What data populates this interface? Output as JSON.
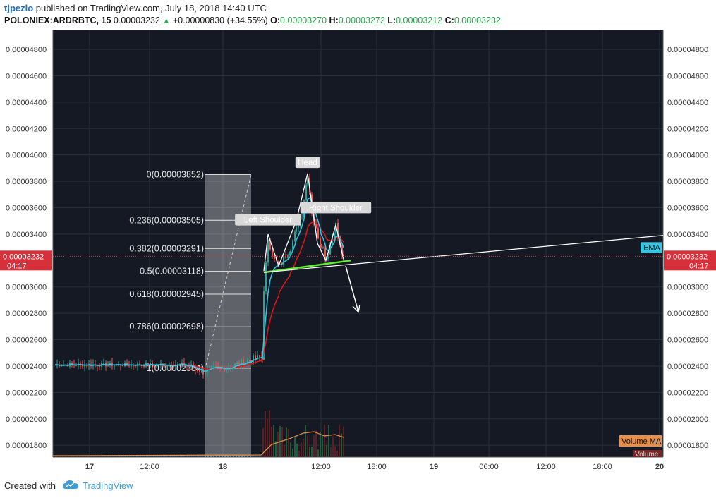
{
  "header": {
    "author": "tjpezlo",
    "published_text": "published on TradingView.com, July 18, 2018 14:40 UTC",
    "symbol_line": "POLONIEX:ARDRBTC, 15",
    "last_price": "0.00003232",
    "change_arrow": "▲",
    "change_text": "+0.00000830 (+34.55%)",
    "open_label": "O:",
    "open": "0.00003270",
    "high_label": "H:",
    "high": "0.00003272",
    "low_label": "L:",
    "low": "0.00003212",
    "close_label": "C:",
    "close": "0.00003232"
  },
  "footer": {
    "created_with": "Created with",
    "brand": "TradingView"
  },
  "chart_data": {
    "type": "candlestick",
    "y_ticks": [
      "0.00004800",
      "0.00004600",
      "0.00004400",
      "0.00004200",
      "0.00004000",
      "0.00003800",
      "0.00003600",
      "0.00003400",
      "0.00003000",
      "0.00002800",
      "0.00002600",
      "0.00002400",
      "0.00002200",
      "0.00002000",
      "0.00001800"
    ],
    "x_ticks": [
      "17",
      "12:00",
      "18",
      "12:00",
      "18:00",
      "19",
      "06:00",
      "12:00",
      "18:00",
      "20"
    ],
    "ylim": [
      1.71e-05,
      4.95e-05
    ],
    "price_label": "0.00003232",
    "countdown": "04:17",
    "fibonacci": [
      {
        "label": "0(0.00003852)",
        "value": 3.852e-05
      },
      {
        "label": "0.236(0.00003505)",
        "value": 3.505e-05
      },
      {
        "label": "0.382(0.00003291)",
        "value": 3.291e-05
      },
      {
        "label": "0.5(0.00003118)",
        "value": 3.118e-05
      },
      {
        "label": "0.618(0.00002945)",
        "value": 2.945e-05
      },
      {
        "label": "0.786(0.00002698)",
        "value": 2.698e-05
      },
      {
        "label": "1(0.00002384)",
        "value": 2.384e-05
      }
    ],
    "annotations": [
      "Head",
      "Left Shoulder",
      "Right Shoulder"
    ],
    "legend": [
      "EMA",
      "Volume MA",
      "Volume"
    ],
    "colors": {
      "background": "#151924",
      "grid": "#2a2e39",
      "up": "#26a69a",
      "down": "#ef5350",
      "ema_fast": "#33c9e6",
      "ema_slow": "#e31414",
      "neckline": "#5cf02b",
      "volume_ma": "#e8904a",
      "price_line": "#d6303a"
    }
  }
}
